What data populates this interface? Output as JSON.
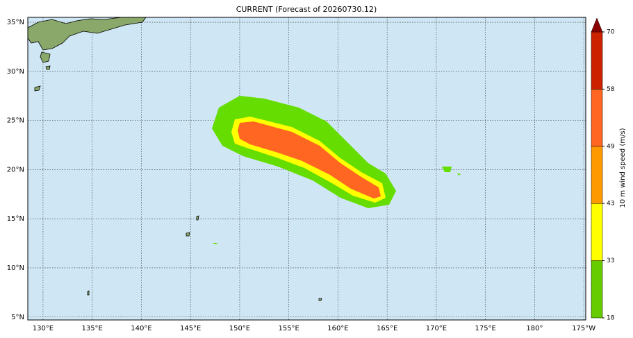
{
  "title": "CURRENT (Forecast of 20260730.12)",
  "map": {
    "xlim": [
      128.45,
      185.2
    ],
    "ylim": [
      4.7,
      35.5
    ],
    "grid": true,
    "lon_ticks": [
      {
        "value": 130,
        "label": "130°E"
      },
      {
        "value": 135,
        "label": "135°E"
      },
      {
        "value": 140,
        "label": "140°E"
      },
      {
        "value": 145,
        "label": "145°E"
      },
      {
        "value": 150,
        "label": "150°E"
      },
      {
        "value": 155,
        "label": "155°E"
      },
      {
        "value": 160,
        "label": "160°E"
      },
      {
        "value": 165,
        "label": "165°E"
      },
      {
        "value": 170,
        "label": "170°E"
      },
      {
        "value": 175,
        "label": "175°E"
      },
      {
        "value": 180,
        "label": "180°"
      },
      {
        "value": 185,
        "label": "175°W"
      }
    ],
    "lat_ticks": [
      {
        "value": 5,
        "label": "5°N"
      },
      {
        "value": 10,
        "label": "10°N"
      },
      {
        "value": 15,
        "label": "15°N"
      },
      {
        "value": 20,
        "label": "20°N"
      },
      {
        "value": 25,
        "label": "25°N"
      },
      {
        "value": 30,
        "label": "30°N"
      },
      {
        "value": 35,
        "label": "35°N"
      }
    ]
  },
  "colorbar": {
    "label": "10 m wind speed (m/s)",
    "levels": [
      18,
      33,
      43,
      49,
      58,
      70
    ],
    "colors": [
      "#66cc00",
      "#ffff00",
      "#ff9900",
      "#ff6622",
      "#cc2200"
    ],
    "extend_color": "#8b0000"
  }
}
